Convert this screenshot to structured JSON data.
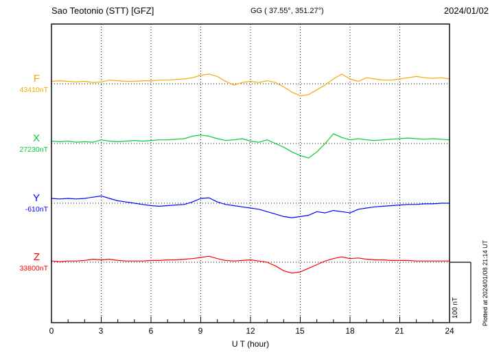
{
  "header": {
    "station": "Sao Teotonio (STT)  [GFZ]",
    "coords": "GG ( 37.55°, 351.27°)",
    "date": "2024/01/02"
  },
  "axis": {
    "xlabel": "U T (hour)",
    "ticks": [
      "0",
      "3",
      "6",
      "9",
      "12",
      "15",
      "18",
      "21",
      "24"
    ]
  },
  "scalebar": {
    "label": "100 nT"
  },
  "footer_note": "Plotted at 2024/01/08 21:14 UT",
  "chart_data": {
    "type": "line",
    "title": "Magnetogram Sao Teotonio (STT) [GFZ] 2024/01/02",
    "xlabel": "U T (hour)",
    "x_ticks": [
      0,
      3,
      6,
      9,
      12,
      15,
      18,
      21,
      24
    ],
    "x_start": 0,
    "x_end": 24,
    "x_step_hours": 0.5,
    "grid": "dotted vertical at 3h, dotted horizontal baseline per trace",
    "scale_bar_nT": 100,
    "series": [
      {
        "name": "F",
        "baseline_label": "43410nT",
        "baseline_nT": 43410,
        "color": "#f5a800",
        "values": [
          4,
          5,
          4,
          3,
          4,
          2,
          3,
          6,
          5,
          4,
          4,
          5,
          5,
          6,
          6,
          7,
          8,
          10,
          14,
          16,
          12,
          4,
          -2,
          2,
          4,
          2,
          5,
          2,
          -5,
          -14,
          -20,
          -18,
          -10,
          -2,
          8,
          16,
          8,
          4,
          10,
          8,
          6,
          6,
          8,
          10,
          12,
          10,
          9,
          10,
          8
        ]
      },
      {
        "name": "X",
        "baseline_label": "27230nT",
        "baseline_nT": 27230,
        "color": "#00cc33",
        "values": [
          4,
          3,
          4,
          2,
          3,
          2,
          6,
          4,
          3,
          4,
          5,
          4,
          5,
          6,
          6,
          7,
          8,
          12,
          14,
          12,
          8,
          5,
          6,
          8,
          4,
          2,
          6,
          0,
          -6,
          -14,
          -20,
          -24,
          -14,
          0,
          16,
          10,
          6,
          8,
          6,
          5,
          6,
          7,
          8,
          9,
          8,
          7,
          8,
          7,
          6
        ]
      },
      {
        "name": "Y",
        "baseline_label": "-610nT",
        "baseline_nT": -610,
        "color": "#0000ff",
        "values": [
          8,
          7,
          8,
          7,
          8,
          10,
          12,
          8,
          4,
          2,
          0,
          -2,
          -4,
          -5,
          -4,
          -3,
          -2,
          2,
          8,
          9,
          2,
          -2,
          -4,
          -6,
          -8,
          -10,
          -14,
          -18,
          -22,
          -24,
          -22,
          -20,
          -14,
          -16,
          -12,
          -14,
          -16,
          -10,
          -8,
          -6,
          -5,
          -4,
          -3,
          -2,
          -2,
          -1,
          -1,
          0,
          0
        ]
      },
      {
        "name": "Z",
        "baseline_label": "33800nT",
        "baseline_nT": 33800,
        "color": "#ff0000",
        "values": [
          2,
          1,
          2,
          2,
          3,
          5,
          4,
          5,
          3,
          2,
          2,
          2,
          3,
          3,
          4,
          4,
          5,
          6,
          8,
          10,
          6,
          3,
          2,
          3,
          4,
          2,
          0,
          -6,
          -14,
          -18,
          -16,
          -10,
          -4,
          2,
          6,
          9,
          6,
          7,
          5,
          4,
          4,
          3,
          3,
          3,
          2,
          2,
          2,
          2,
          2
        ]
      }
    ]
  }
}
